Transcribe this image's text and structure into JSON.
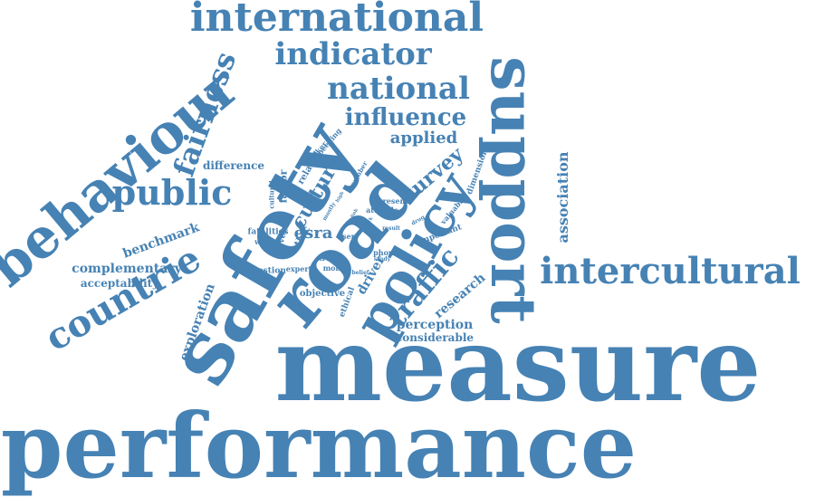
{
  "color": "#4682b4",
  "background": "#ffffff",
  "words": {
    "measure": "measure",
    "performance": "performance",
    "safety": "safety",
    "road": "road",
    "support": "support",
    "policy": "policy",
    "behaviour": "behaviour",
    "international": "international",
    "intercultural": "intercultural",
    "countrie": "countrie",
    "public": "public",
    "fairness": "fairness",
    "indicator": "indicator",
    "national": "national",
    "influence": "influence",
    "traffic": "traffic",
    "culture": "culture",
    "survey": "survey",
    "applied": "applied",
    "association": "association",
    "benchmark": "benchmark",
    "complementary": "complementary",
    "acceptability": "acceptability",
    "exploration": "exploration",
    "perception": "perception",
    "considerable": "considerable",
    "research": "research",
    "difference": "difference",
    "esra": "esra",
    "driver": "driver",
    "factor": "factor",
    "related": "related",
    "ethic": "ethic",
    "ethical": "ethical",
    "fatalities": "fatalities",
    "wealth": "wealth",
    "question": "question",
    "expert": "expert",
    "mobile": "mobile",
    "objective": "objective",
    "trade": "trade",
    "phone": "phone",
    "attitude": "attitude",
    "present": "present",
    "important": "important",
    "valuable": "valuable",
    "dimension": "dimension",
    "level": "level",
    "cultural": "cultural",
    "maker": "maker",
    "speeding": "speeding",
    "number": "number",
    "user": "user",
    "belief": "belief",
    "study": "study",
    "result": "result",
    "drug": "drug",
    "mostly": "mostly",
    "high": "high",
    "link": "link",
    "dark": "dark"
  }
}
